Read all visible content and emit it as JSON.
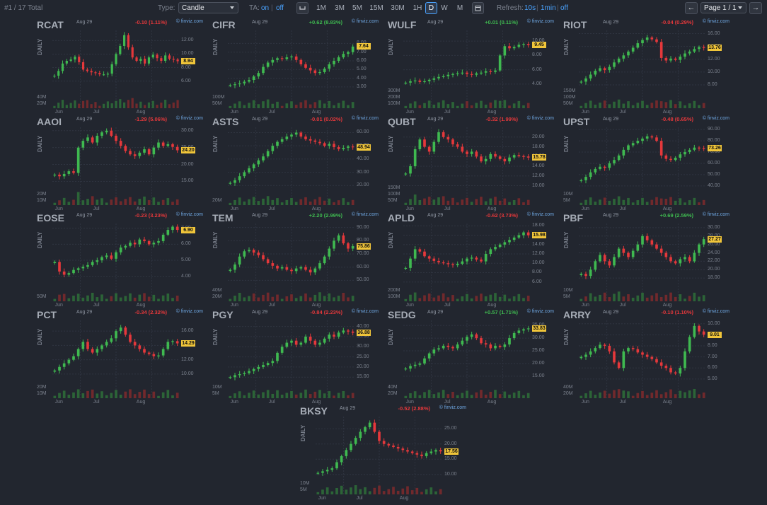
{
  "toolbar": {
    "result_count": "#1 / 17 Total",
    "type_label": "Type:",
    "type_value": "Candle",
    "ta_label": "TA:",
    "ta_on": "on",
    "ta_sep": "|",
    "ta_off": "off",
    "timeframes": [
      "1M",
      "3M",
      "5M",
      "15M",
      "30M",
      "1H",
      "D",
      "W",
      "M"
    ],
    "active_timeframe": "D",
    "refresh_label": "Refresh:",
    "refresh_10s": "10s",
    "refresh_1min": "1min",
    "refresh_off": "off",
    "page_label": "Page 1 / 1",
    "prev_icon": "←",
    "next_icon": "→"
  },
  "colors": {
    "up": "#3fb950",
    "down": "#e5383b",
    "price_tag": "#f0c53a",
    "link": "#4aa3ff",
    "background": "#22262f"
  },
  "icons": [
    "chart-type-icon",
    "calendar-icon",
    "arrow-left-icon",
    "arrow-right-icon",
    "chevron-down-icon"
  ],
  "chart_data": [
    {
      "type": "candlestick",
      "ticker": "RCAT",
      "date": "Aug 29",
      "change": "-0.10 (1.11%)",
      "direction": "down",
      "source": "© finviz.com",
      "period": "DAILY",
      "last_label": "8.94",
      "last": 8.94,
      "ylim": [
        4.5,
        13.5
      ],
      "y_ticks": [
        "12.00",
        "10.00",
        "8.00",
        "6.00"
      ],
      "y_tick_values": [
        12,
        10,
        8,
        6
      ],
      "vol_ticks": [
        "40M",
        "20M"
      ],
      "x_ticks": [
        "Jun",
        "Jul",
        "Aug"
      ],
      "closes": [
        6.8,
        7.5,
        8.6,
        9.0,
        9.2,
        9.6,
        8.8,
        7.7,
        7.5,
        7.3,
        7.2,
        7.0,
        7.0,
        7.1,
        8.5,
        10.0,
        11.2,
        12.8,
        11.0,
        9.5,
        9.0,
        9.3,
        8.6,
        9.5,
        9.9,
        9.4,
        9.0,
        9.8,
        9.3,
        9.2,
        8.94
      ]
    },
    {
      "type": "candlestick",
      "ticker": "CIFR",
      "date": "Aug 29",
      "change": "+0.62 (8.83%)",
      "direction": "up",
      "source": "© finviz.com",
      "period": "DAILY",
      "last_label": "7.64",
      "last": 7.64,
      "ylim": [
        2.5,
        9.5
      ],
      "y_ticks": [
        "8.00",
        "7.00",
        "6.00",
        "5.00",
        "4.00",
        "3.00"
      ],
      "y_tick_values": [
        8,
        7,
        6,
        5,
        4,
        3
      ],
      "vol_ticks": [
        "100M",
        "50M"
      ],
      "x_ticks": [
        "Jun",
        "Jul",
        "Aug"
      ],
      "closes": [
        3.2,
        3.3,
        3.4,
        3.6,
        3.8,
        4.2,
        4.6,
        5.3,
        5.8,
        6.1,
        6.3,
        6.2,
        6.4,
        6.5,
        6.1,
        5.6,
        5.2,
        4.9,
        4.6,
        4.7,
        5.1,
        5.6,
        6.0,
        6.4,
        6.8,
        7.0,
        7.64
      ]
    },
    {
      "type": "candlestick",
      "ticker": "WULF",
      "date": "Aug 29",
      "change": "+0.01 (0.11%)",
      "direction": "up",
      "source": "© finviz.com",
      "period": "DAILY",
      "last_label": "9.45",
      "last": 9.45,
      "ylim": [
        3.0,
        11.5
      ],
      "y_ticks": [
        "10.00",
        "8.00",
        "6.00",
        "4.00"
      ],
      "y_tick_values": [
        10,
        8,
        6,
        4
      ],
      "vol_ticks": [
        "300M",
        "200M",
        "100M"
      ],
      "x_ticks": [
        "Jun",
        "Jul",
        "Aug"
      ],
      "closes": [
        4.2,
        4.4,
        4.5,
        4.3,
        4.4,
        4.6,
        4.8,
        5.0,
        5.1,
        5.3,
        5.4,
        5.5,
        5.6,
        5.4,
        5.3,
        5.5,
        5.6,
        5.8,
        5.7,
        5.9,
        8.0,
        9.3,
        9.0,
        9.2,
        9.5,
        9.6,
        9.45
      ]
    },
    {
      "type": "candlestick",
      "ticker": "RIOT",
      "date": "Aug 29",
      "change": "-0.04 (0.29%)",
      "direction": "down",
      "source": "© finviz.com",
      "period": "DAILY",
      "last_label": "13.76",
      "last": 13.76,
      "ylim": [
        7.0,
        16.5
      ],
      "y_ticks": [
        "16.00",
        "14.00",
        "12.00",
        "10.00",
        "8.00"
      ],
      "y_tick_values": [
        16,
        14,
        12,
        10,
        8
      ],
      "vol_ticks": [
        "150M",
        "100M",
        "50M"
      ],
      "x_ticks": [
        "Jun",
        "Jul",
        "Aug"
      ],
      "closes": [
        8.5,
        9.0,
        9.6,
        10.2,
        10.6,
        10.3,
        10.8,
        11.5,
        12.1,
        12.6,
        13.2,
        13.8,
        14.5,
        15.0,
        15.4,
        15.1,
        14.7,
        12.2,
        11.8,
        12.1,
        11.9,
        12.4,
        12.9,
        13.2,
        13.6,
        13.9,
        13.76
      ]
    },
    {
      "type": "candlestick",
      "ticker": "AAOI",
      "date": "Aug 29",
      "change": "-1.29 (5.06%)",
      "direction": "down",
      "source": "© finviz.com",
      "period": "DAILY",
      "last_label": "24.20",
      "last": 24.2,
      "ylim": [
        13.0,
        31.0
      ],
      "y_ticks": [
        "30.00",
        "25.00",
        "20.00",
        "15.00"
      ],
      "y_tick_values": [
        30,
        25,
        20,
        15
      ],
      "vol_ticks": [
        "20M",
        "10M"
      ],
      "x_ticks": [
        "Jun",
        "Jul",
        "Aug"
      ],
      "closes": [
        17.0,
        16.5,
        17.2,
        18.0,
        17.5,
        25.0,
        27.0,
        28.0,
        26.5,
        28.5,
        29.5,
        30.0,
        28.5,
        27.0,
        25.5,
        24.0,
        23.0,
        22.5,
        23.5,
        24.5,
        23.0,
        25.0,
        26.5,
        25.5,
        26.0,
        25.2,
        24.2
      ]
    },
    {
      "type": "candlestick",
      "ticker": "ASTS",
      "date": "Aug 29",
      "change": "-0.01 (0.02%)",
      "direction": "down",
      "source": "© finviz.com",
      "period": "DAILY",
      "last_label": "48.94",
      "last": 48.94,
      "ylim": [
        18.0,
        64.0
      ],
      "y_ticks": [
        "60.00",
        "50.00",
        "40.00",
        "30.00",
        "20.00"
      ],
      "y_tick_values": [
        60,
        50,
        40,
        30,
        20
      ],
      "vol_ticks": [
        "20M"
      ],
      "x_ticks": [
        "Jun",
        "Jul",
        "Aug"
      ],
      "closes": [
        22.0,
        24.0,
        27.0,
        30.0,
        33.0,
        36.0,
        39.0,
        42.0,
        46.0,
        50.0,
        53.0,
        55.0,
        57.0,
        58.5,
        60.0,
        57.0,
        55.0,
        54.0,
        53.0,
        52.0,
        50.0,
        51.5,
        49.0,
        47.5,
        48.5,
        49.5,
        48.94
      ]
    },
    {
      "type": "candlestick",
      "ticker": "QUBT",
      "date": "Aug 29",
      "change": "-0.32 (1.99%)",
      "direction": "down",
      "source": "© finviz.com",
      "period": "DAILY",
      "last_label": "15.78",
      "last": 15.78,
      "ylim": [
        9.5,
        22.0
      ],
      "y_ticks": [
        "20.00",
        "18.00",
        "16.00",
        "14.00",
        "12.00",
        "10.00"
      ],
      "y_tick_values": [
        20,
        18,
        16,
        14,
        12,
        10
      ],
      "vol_ticks": [
        "150M",
        "100M",
        "50M"
      ],
      "x_ticks": [
        "Jun",
        "Jul",
        "Aug"
      ],
      "closes": [
        12.5,
        14.0,
        17.5,
        19.5,
        18.0,
        17.0,
        19.0,
        21.0,
        20.0,
        19.5,
        18.5,
        18.0,
        17.0,
        16.5,
        17.0,
        16.0,
        15.0,
        15.5,
        16.5,
        16.0,
        15.5,
        15.0,
        15.8,
        16.3,
        16.1,
        16.0,
        15.78
      ]
    },
    {
      "type": "candlestick",
      "ticker": "UPST",
      "date": "Aug 29",
      "change": "-0.48 (0.65%)",
      "direction": "down",
      "source": "© finviz.com",
      "period": "DAILY",
      "last_label": "73.26",
      "last": 73.26,
      "ylim": [
        38.0,
        92.0
      ],
      "y_ticks": [
        "90.00",
        "80.00",
        "70.00",
        "60.00",
        "50.00",
        "40.00"
      ],
      "y_tick_values": [
        90,
        80,
        70,
        60,
        50,
        40
      ],
      "vol_ticks": [
        "10M",
        "5M"
      ],
      "x_ticks": [
        "Jun",
        "Jul",
        "Aug"
      ],
      "closes": [
        45.0,
        48.0,
        52.0,
        55.0,
        57.0,
        56.0,
        60.0,
        63.0,
        67.0,
        72.0,
        76.0,
        78.0,
        80.0,
        82.0,
        84.0,
        83.0,
        80.0,
        67.0,
        64.0,
        63.0,
        65.0,
        68.0,
        70.0,
        72.0,
        74.0,
        73.7,
        73.26
      ]
    },
    {
      "type": "candlestick",
      "ticker": "EOSE",
      "date": "Aug 29",
      "change": "-0.23 (3.23%)",
      "direction": "down",
      "source": "© finviz.com",
      "period": "DAILY",
      "last_label": "6.90",
      "last": 6.9,
      "ylim": [
        3.5,
        7.3
      ],
      "y_ticks": [
        "7.00",
        "6.00",
        "5.00",
        "4.00"
      ],
      "y_tick_values": [
        7,
        6,
        5,
        4
      ],
      "vol_ticks": [
        "50M"
      ],
      "x_ticks": [
        "Jun",
        "Jul",
        "Aug"
      ],
      "closes": [
        4.9,
        4.3,
        4.1,
        4.2,
        4.4,
        4.5,
        4.6,
        4.7,
        4.9,
        5.0,
        5.2,
        5.3,
        5.1,
        5.5,
        5.8,
        5.9,
        6.1,
        6.0,
        6.3,
        6.2,
        6.0,
        6.1,
        6.2,
        6.6,
        6.9,
        7.1,
        6.9
      ]
    },
    {
      "type": "candlestick",
      "ticker": "TEM",
      "date": "Aug 29",
      "change": "+2.20 (2.99%)",
      "direction": "up",
      "source": "© finviz.com",
      "period": "DAILY",
      "last_label": "75.86",
      "last": 75.86,
      "ylim": [
        47.0,
        93.0
      ],
      "y_ticks": [
        "90.00",
        "80.00",
        "70.00",
        "60.00",
        "50.00"
      ],
      "y_tick_values": [
        90,
        80,
        70,
        60,
        50
      ],
      "vol_ticks": [
        "40M",
        "20M"
      ],
      "x_ticks": [
        "Jun",
        "Jul",
        "Aug"
      ],
      "closes": [
        58.0,
        62.0,
        68.0,
        72.0,
        73.0,
        71.0,
        69.0,
        66.0,
        63.0,
        61.0,
        59.0,
        60.0,
        58.0,
        57.0,
        59.0,
        60.0,
        58.0,
        56.0,
        59.0,
        63.0,
        68.0,
        74.0,
        80.0,
        84.0,
        78.0,
        74.0,
        75.86
      ]
    },
    {
      "type": "candlestick",
      "ticker": "APLD",
      "date": "Aug 29",
      "change": "-0.62 (3.73%)",
      "direction": "down",
      "source": "© finviz.com",
      "period": "DAILY",
      "last_label": "15.98",
      "last": 15.98,
      "ylim": [
        5.5,
        18.5
      ],
      "y_ticks": [
        "18.00",
        "16.00",
        "14.00",
        "12.00",
        "10.00",
        "8.00",
        "6.00"
      ],
      "y_tick_values": [
        18,
        16,
        14,
        12,
        10,
        8,
        6
      ],
      "vol_ticks": [
        "200M",
        "100M"
      ],
      "x_ticks": [
        "Jun",
        "Jul",
        "Aug"
      ],
      "closes": [
        9.0,
        11.0,
        13.0,
        12.5,
        11.5,
        11.0,
        10.5,
        10.2,
        10.0,
        9.8,
        9.6,
        9.9,
        10.4,
        11.0,
        11.2,
        10.8,
        10.4,
        12.0,
        13.0,
        13.5,
        14.0,
        14.5,
        15.0,
        15.5,
        16.0,
        16.6,
        15.98
      ]
    },
    {
      "type": "candlestick",
      "ticker": "PBF",
      "date": "Aug 29",
      "change": "+0.69 (2.59%)",
      "direction": "up",
      "source": "© finviz.com",
      "period": "DAILY",
      "last_label": "27.27",
      "last": 27.27,
      "ylim": [
        16.5,
        31.0
      ],
      "y_ticks": [
        "30.00",
        "28.00",
        "26.00",
        "24.00",
        "22.00",
        "20.00",
        "18.00"
      ],
      "y_tick_values": [
        30,
        28,
        26,
        24,
        22,
        20,
        18
      ],
      "vol_ticks": [
        "10M",
        "5M"
      ],
      "x_ticks": [
        "Jun",
        "Jul",
        "Aug"
      ],
      "closes": [
        19.0,
        18.5,
        20.0,
        22.0,
        23.5,
        22.0,
        21.0,
        23.0,
        25.0,
        24.0,
        23.0,
        24.5,
        26.0,
        28.0,
        27.0,
        26.0,
        25.0,
        24.0,
        23.0,
        22.0,
        21.5,
        22.5,
        23.0,
        22.0,
        24.0,
        26.0,
        27.27
      ]
    },
    {
      "type": "candlestick",
      "ticker": "PCT",
      "date": "Aug 29",
      "change": "-0.34 (2.32%)",
      "direction": "down",
      "source": "© finviz.com",
      "period": "DAILY",
      "last_label": "14.29",
      "last": 14.29,
      "ylim": [
        9.0,
        17.5
      ],
      "y_ticks": [
        "16.00",
        "14.00",
        "12.00",
        "10.00"
      ],
      "y_tick_values": [
        16,
        14,
        12,
        10
      ],
      "vol_ticks": [
        "20M",
        "10M"
      ],
      "x_ticks": [
        "Jun",
        "Jul",
        "Aug"
      ],
      "closes": [
        10.5,
        11.0,
        11.5,
        12.0,
        12.5,
        13.5,
        14.5,
        13.5,
        13.0,
        13.5,
        14.0,
        14.5,
        15.0,
        16.0,
        16.5,
        15.5,
        14.5,
        14.0,
        13.5,
        13.0,
        12.8,
        12.5,
        12.6,
        13.5,
        14.5,
        14.6,
        14.29
      ]
    },
    {
      "type": "candlestick",
      "ticker": "PGY",
      "date": "Aug 29",
      "change": "-0.84 (2.23%)",
      "direction": "down",
      "source": "© finviz.com",
      "period": "DAILY",
      "last_label": "36.88",
      "last": 36.88,
      "ylim": [
        13.0,
        43.0
      ],
      "y_ticks": [
        "40.00",
        "35.00",
        "30.00",
        "25.00",
        "20.00",
        "15.00"
      ],
      "y_tick_values": [
        40,
        35,
        30,
        25,
        20,
        15
      ],
      "vol_ticks": [
        "10M",
        "5M"
      ],
      "x_ticks": [
        "Jun",
        "Jul",
        "Aug"
      ],
      "closes": [
        15.0,
        16.0,
        16.5,
        17.0,
        18.0,
        19.0,
        20.0,
        21.0,
        22.0,
        23.0,
        27.0,
        30.0,
        32.0,
        33.0,
        31.0,
        32.0,
        35.0,
        33.0,
        31.0,
        32.0,
        34.0,
        36.0,
        35.0,
        37.0,
        38.0,
        37.5,
        36.88
      ]
    },
    {
      "type": "candlestick",
      "ticker": "SEDG",
      "date": "Aug 29",
      "change": "+0.57 (1.71%)",
      "direction": "up",
      "source": "© finviz.com",
      "period": "DAILY",
      "last_label": "33.83",
      "last": 33.83,
      "ylim": [
        13.0,
        37.0
      ],
      "y_ticks": [
        "35.00",
        "30.00",
        "25.00",
        "20.00",
        "15.00"
      ],
      "y_tick_values": [
        35,
        30,
        25,
        20,
        15
      ],
      "vol_ticks": [
        "40M",
        "20M"
      ],
      "x_ticks": [
        "Jun",
        "Jul",
        "Aug"
      ],
      "closes": [
        18.0,
        19.0,
        19.5,
        20.0,
        22.0,
        24.0,
        25.5,
        26.0,
        27.0,
        26.5,
        26.0,
        27.5,
        29.0,
        30.5,
        31.5,
        30.0,
        28.0,
        27.5,
        26.0,
        27.0,
        26.5,
        27.5,
        30.0,
        32.0,
        33.0,
        33.5,
        33.83
      ]
    },
    {
      "type": "candlestick",
      "ticker": "ARRY",
      "date": "Aug 29",
      "change": "-0.10 (1.10%)",
      "direction": "down",
      "source": "© finviz.com",
      "period": "DAILY",
      "last_label": "9.01",
      "last": 9.01,
      "ylim": [
        4.8,
        10.3
      ],
      "y_ticks": [
        "10.00",
        "9.00",
        "8.00",
        "7.00",
        "6.00",
        "5.00"
      ],
      "y_tick_values": [
        10,
        9,
        8,
        7,
        6,
        5
      ],
      "vol_ticks": [
        "40M",
        "20M"
      ],
      "x_ticks": [
        "Jun",
        "Jul",
        "Aug"
      ],
      "closes": [
        7.0,
        7.2,
        7.5,
        7.8,
        8.1,
        8.0,
        7.5,
        6.5,
        6.0,
        7.5,
        7.8,
        7.7,
        7.4,
        7.2,
        7.0,
        6.8,
        6.5,
        6.2,
        6.0,
        5.6,
        5.5,
        6.0,
        7.5,
        8.8,
        9.8,
        9.3,
        9.01
      ]
    },
    {
      "type": "candlestick",
      "ticker": "BKSY",
      "date": "Aug 29",
      "change": "-0.52 (2.88%)",
      "direction": "down",
      "source": "© finviz.com",
      "period": "DAILY",
      "last_label": "17.56",
      "last": 17.56,
      "ylim": [
        9.0,
        29.0
      ],
      "y_ticks": [
        "25.00",
        "20.00",
        "15.00",
        "10.00"
      ],
      "y_tick_values": [
        25,
        20,
        15,
        10
      ],
      "vol_ticks": [
        "10M",
        "5M"
      ],
      "x_ticks": [
        "Jun",
        "Jul",
        "Aug"
      ],
      "closes": [
        10.5,
        11.0,
        11.5,
        12.0,
        14.0,
        16.0,
        18.0,
        20.0,
        22.0,
        24.0,
        25.5,
        27.0,
        24.0,
        21.0,
        20.0,
        19.5,
        19.0,
        18.5,
        18.0,
        17.5,
        17.0,
        16.5,
        16.0,
        17.0,
        17.5,
        18.0,
        17.56
      ]
    }
  ]
}
